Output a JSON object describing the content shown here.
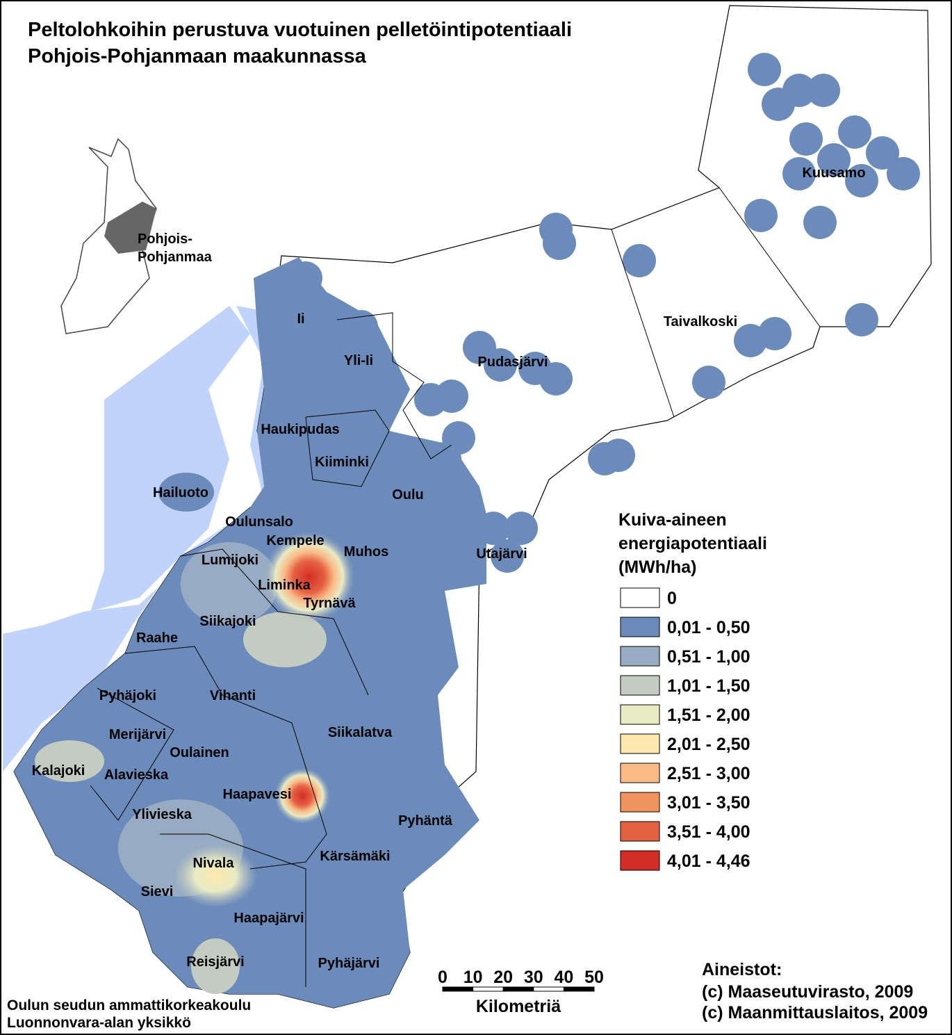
{
  "title": [
    "Peltolohkoihin perustuva vuotuinen pelletöintipotentiaali",
    "Pohjois-Pohjanmaan maakunnassa"
  ],
  "inset": {
    "label": [
      "Pohjois-",
      "Pohjanmaa"
    ]
  },
  "map": {
    "labels": [
      "Ii",
      "Yli-Ii",
      "Pudasjärvi",
      "Kuusamo",
      "Taivalkoski",
      "Haukipudas",
      "Kiiminki",
      "Oulu",
      "Hailuoto",
      "Oulunsalo",
      "Kempele",
      "Muhos",
      "Utajärvi",
      "Lumijoki",
      "Liminka",
      "Tyrnävä",
      "Siikajoki",
      "Raahe",
      "Pyhäjoki",
      "Vihanti",
      "Siikalatva",
      "Merijärvi",
      "Oulainen",
      "Kalajoki",
      "Alavieska",
      "Haapavesi",
      "Pyhäntä",
      "Ylivieska",
      "Kärsämäki",
      "Nivala",
      "Sievi",
      "Haapajärvi",
      "Reisjärvi",
      "Pyhäjärvi"
    ]
  },
  "legend": {
    "title": [
      "Kuiva-aineen",
      "energiapotentiaali",
      "(MWh/ha)"
    ],
    "classes": [
      {
        "label": "0",
        "color": "#ffffff"
      },
      {
        "label": "0,01 - 0,50",
        "color": "#6b8cbb"
      },
      {
        "label": "0,51 - 1,00",
        "color": "#97abc2"
      },
      {
        "label": "1,01 - 1,50",
        "color": "#c4cbc0"
      },
      {
        "label": "1,51 - 2,00",
        "color": "#e8ebc3"
      },
      {
        "label": "2,01 - 2,50",
        "color": "#fde9ad"
      },
      {
        "label": "2,51 - 3,00",
        "color": "#f9ba88"
      },
      {
        "label": "3,01 - 3,50",
        "color": "#f0935f"
      },
      {
        "label": "3,51 - 4,00",
        "color": "#e56142"
      },
      {
        "label": "4,01 - 4,46",
        "color": "#d42d26"
      }
    ]
  },
  "scale": {
    "ticks": [
      0,
      10,
      20,
      30,
      40,
      50
    ],
    "unit": "Kilometriä"
  },
  "credits": {
    "left": [
      "Oulun seudun ammattikorkeakoulu",
      "Luonnonvara-alan yksikkö"
    ],
    "right": [
      "Aineistot:",
      "(c) Maaseutuvirasto, 2009",
      "(c) Maanmittauslaitos, 2009"
    ]
  }
}
